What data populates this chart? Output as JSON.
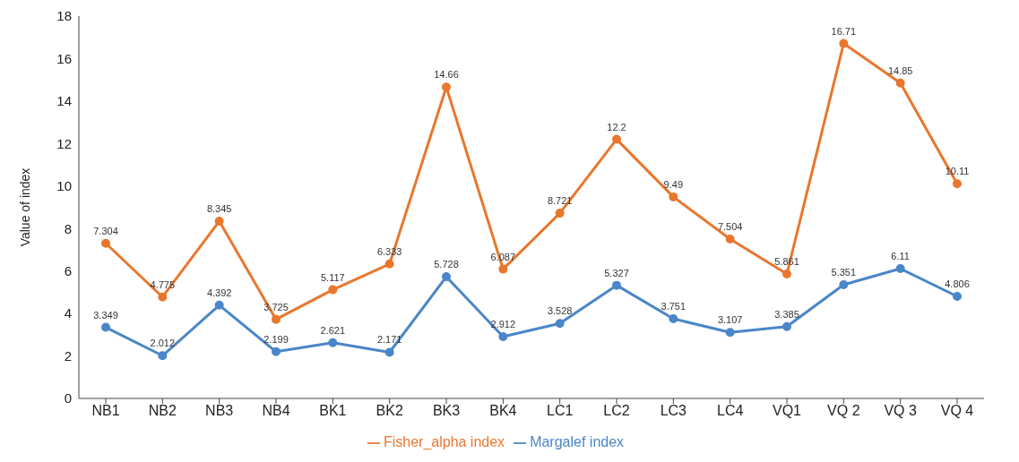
{
  "chart_data": {
    "type": "line",
    "ylabel": "Value of index",
    "categories": [
      "NB1",
      "NB2",
      "NB3",
      "NB4",
      "BK1",
      "BK2",
      "BK3",
      "BK4",
      "LC1",
      "LC2",
      "LC3",
      "LC4",
      "VQ1",
      "VQ 2",
      "VQ 3",
      "VQ 4"
    ],
    "series": [
      {
        "name": "Margalef index",
        "color": "#4a86c8",
        "values": [
          3.349,
          2.012,
          4.392,
          2.199,
          2.621,
          2.171,
          5.728,
          2.912,
          3.528,
          5.327,
          3.751,
          3.107,
          3.385,
          5.351,
          6.11,
          4.806
        ]
      },
      {
        "name": "Fisher_alpha index",
        "color": "#e8772e",
        "values": [
          7.304,
          4.775,
          8.345,
          3.725,
          5.117,
          6.333,
          14.66,
          6.087,
          8.721,
          12.2,
          9.49,
          7.504,
          5.861,
          16.71,
          14.85,
          10.11
        ]
      }
    ],
    "ylim": [
      0,
      18
    ],
    "yticks": [
      0,
      2,
      4,
      6,
      8,
      10,
      12,
      14,
      16,
      18
    ],
    "grid": false,
    "legend": "bottom",
    "marker": "circle",
    "line_style": "solid",
    "data_labels": true
  }
}
